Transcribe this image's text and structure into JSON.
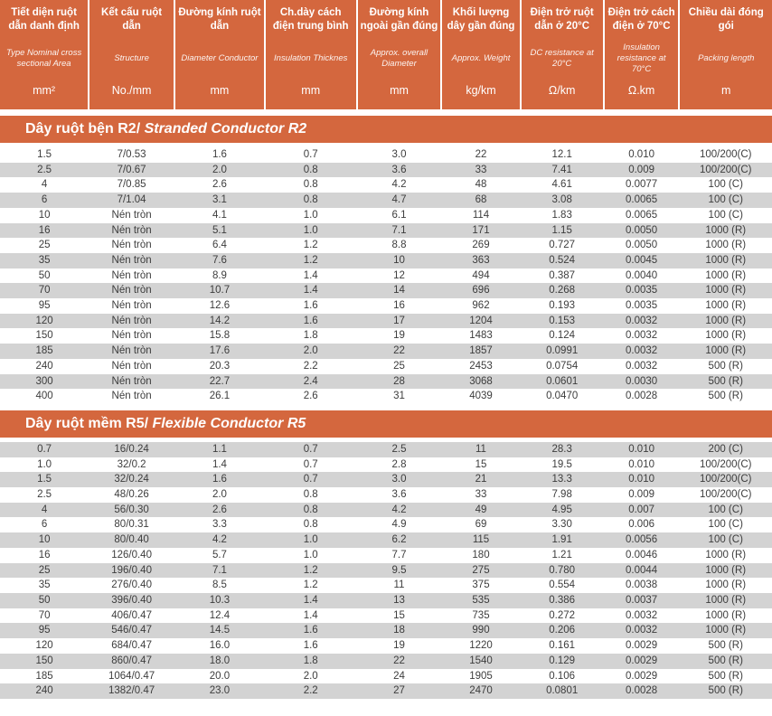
{
  "colors": {
    "accent_orange": "#d4673e",
    "stripe_gray": "#d3d3d3",
    "row_text": "#3d3d3d"
  },
  "table": {
    "columns": [
      {
        "vn": "Tiết diện ruột dẫn danh định",
        "en": "Type Nominal cross sectional Area",
        "unit": "mm²"
      },
      {
        "vn": "Kết cấu ruột dẫn",
        "en": "Structure",
        "unit": "No./mm"
      },
      {
        "vn": "Đường kính ruột dẫn",
        "en": "Diameter Conductor",
        "unit": "mm"
      },
      {
        "vn": "Ch.dày cách điện trung bình",
        "en": "Insulation Thicknes",
        "unit": "mm"
      },
      {
        "vn": "Đường kính ngoài gần đúng",
        "en": "Approx. overall Diameter",
        "unit": "mm"
      },
      {
        "vn": "Khối lượng dây gần đúng",
        "en": "Approx. Weight",
        "unit": "kg/km"
      },
      {
        "vn": "Điện trở ruột dẫn ở 20°C",
        "en": "DC resistance at 20°C",
        "unit": "Ω/km"
      },
      {
        "vn": "Điện trở cách điện ở 70°C",
        "en": "Insulation resistance at 70°C",
        "unit": "Ω.km"
      },
      {
        "vn": "Chiều dài đóng gói",
        "en": "Packing length",
        "unit": "m"
      }
    ],
    "sections": [
      {
        "title_vn": "Dây ruột bện R2/",
        "title_en": "Stranded Conductor R2",
        "shaded_first_row": false,
        "rows": [
          [
            "1.5",
            "7/0.53",
            "1.6",
            "0.7",
            "3.0",
            "22",
            "12.1",
            "0.010",
            "100/200(C)"
          ],
          [
            "2.5",
            "7/0.67",
            "2.0",
            "0.8",
            "3.6",
            "33",
            "7.41",
            "0.009",
            "100/200(C)"
          ],
          [
            "4",
            "7/0.85",
            "2.6",
            "0.8",
            "4.2",
            "48",
            "4.61",
            "0.0077",
            "100 (C)"
          ],
          [
            "6",
            "7/1.04",
            "3.1",
            "0.8",
            "4.7",
            "68",
            "3.08",
            "0.0065",
            "100 (C)"
          ],
          [
            "10",
            "Nén tròn",
            "4.1",
            "1.0",
            "6.1",
            "114",
            "1.83",
            "0.0065",
            "100 (C)"
          ],
          [
            "16",
            "Nén tròn",
            "5.1",
            "1.0",
            "7.1",
            "171",
            "1.15",
            "0.0050",
            "1000 (R)"
          ],
          [
            "25",
            "Nén tròn",
            "6.4",
            "1.2",
            "8.8",
            "269",
            "0.727",
            "0.0050",
            "1000 (R)"
          ],
          [
            "35",
            "Nén tròn",
            "7.6",
            "1.2",
            "10",
            "363",
            "0.524",
            "0.0045",
            "1000 (R)"
          ],
          [
            "50",
            "Nén tròn",
            "8.9",
            "1.4",
            "12",
            "494",
            "0.387",
            "0.0040",
            "1000 (R)"
          ],
          [
            "70",
            "Nén tròn",
            "10.7",
            "1.4",
            "14",
            "696",
            "0.268",
            "0.0035",
            "1000 (R)"
          ],
          [
            "95",
            "Nén tròn",
            "12.6",
            "1.6",
            "16",
            "962",
            "0.193",
            "0.0035",
            "1000 (R)"
          ],
          [
            "120",
            "Nén tròn",
            "14.2",
            "1.6",
            "17",
            "1204",
            "0.153",
            "0.0032",
            "1000 (R)"
          ],
          [
            "150",
            "Nén tròn",
            "15.8",
            "1.8",
            "19",
            "1483",
            "0.124",
            "0.0032",
            "1000 (R)"
          ],
          [
            "185",
            "Nén tròn",
            "17.6",
            "2.0",
            "22",
            "1857",
            "0.0991",
            "0.0032",
            "1000 (R)"
          ],
          [
            "240",
            "Nén tròn",
            "20.3",
            "2.2",
            "25",
            "2453",
            "0.0754",
            "0.0032",
            "500 (R)"
          ],
          [
            "300",
            "Nén tròn",
            "22.7",
            "2.4",
            "28",
            "3068",
            "0.0601",
            "0.0030",
            "500 (R)"
          ],
          [
            "400",
            "Nén tròn",
            "26.1",
            "2.6",
            "31",
            "4039",
            "0.0470",
            "0.0028",
            "500 (R)"
          ]
        ]
      },
      {
        "title_vn": "Dây ruột mềm R5/",
        "title_en": "Flexible Conductor R5",
        "shaded_first_row": true,
        "rows": [
          [
            "0.7",
            "16/0.24",
            "1.1",
            "0.7",
            "2.5",
            "11",
            "28.3",
            "0.010",
            "200 (C)"
          ],
          [
            "1.0",
            "32/0.2",
            "1.4",
            "0.7",
            "2.8",
            "15",
            "19.5",
            "0.010",
            "100/200(C)"
          ],
          [
            "1.5",
            "32/0.24",
            "1.6",
            "0.7",
            "3.0",
            "21",
            "13.3",
            "0.010",
            "100/200(C)"
          ],
          [
            "2.5",
            "48/0.26",
            "2.0",
            "0.8",
            "3.6",
            "33",
            "7.98",
            "0.009",
            "100/200(C)"
          ],
          [
            "4",
            "56/0.30",
            "2.6",
            "0.8",
            "4.2",
            "49",
            "4.95",
            "0.007",
            "100 (C)"
          ],
          [
            "6",
            "80/0.31",
            "3.3",
            "0.8",
            "4.9",
            "69",
            "3.30",
            "0.006",
            "100 (C)"
          ],
          [
            "10",
            "80/0.40",
            "4.2",
            "1.0",
            "6.2",
            "115",
            "1.91",
            "0.0056",
            "100 (C)"
          ],
          [
            "16",
            "126/0.40",
            "5.7",
            "1.0",
            "7.7",
            "180",
            "1.21",
            "0.0046",
            "1000 (R)"
          ],
          [
            "25",
            "196/0.40",
            "7.1",
            "1.2",
            "9.5",
            "275",
            "0.780",
            "0.0044",
            "1000 (R)"
          ],
          [
            "35",
            "276/0.40",
            "8.5",
            "1.2",
            "11",
            "375",
            "0.554",
            "0.0038",
            "1000 (R)"
          ],
          [
            "50",
            "396/0.40",
            "10.3",
            "1.4",
            "13",
            "535",
            "0.386",
            "0.0037",
            "1000 (R)"
          ],
          [
            "70",
            "406/0.47",
            "12.4",
            "1.4",
            "15",
            "735",
            "0.272",
            "0.0032",
            "1000 (R)"
          ],
          [
            "95",
            "546/0.47",
            "14.5",
            "1.6",
            "18",
            "990",
            "0.206",
            "0.0032",
            "1000 (R)"
          ],
          [
            "120",
            "684/0.47",
            "16.0",
            "1.6",
            "19",
            "1220",
            "0.161",
            "0.0029",
            "500 (R)"
          ],
          [
            "150",
            "860/0.47",
            "18.0",
            "1.8",
            "22",
            "1540",
            "0.129",
            "0.0029",
            "500 (R)"
          ],
          [
            "185",
            "1064/0.47",
            "20.0",
            "2.0",
            "24",
            "1905",
            "0.106",
            "0.0029",
            "500 (R)"
          ],
          [
            "240",
            "1382/0.47",
            "23.0",
            "2.2",
            "27",
            "2470",
            "0.0801",
            "0.0028",
            "500 (R)"
          ]
        ]
      }
    ]
  }
}
